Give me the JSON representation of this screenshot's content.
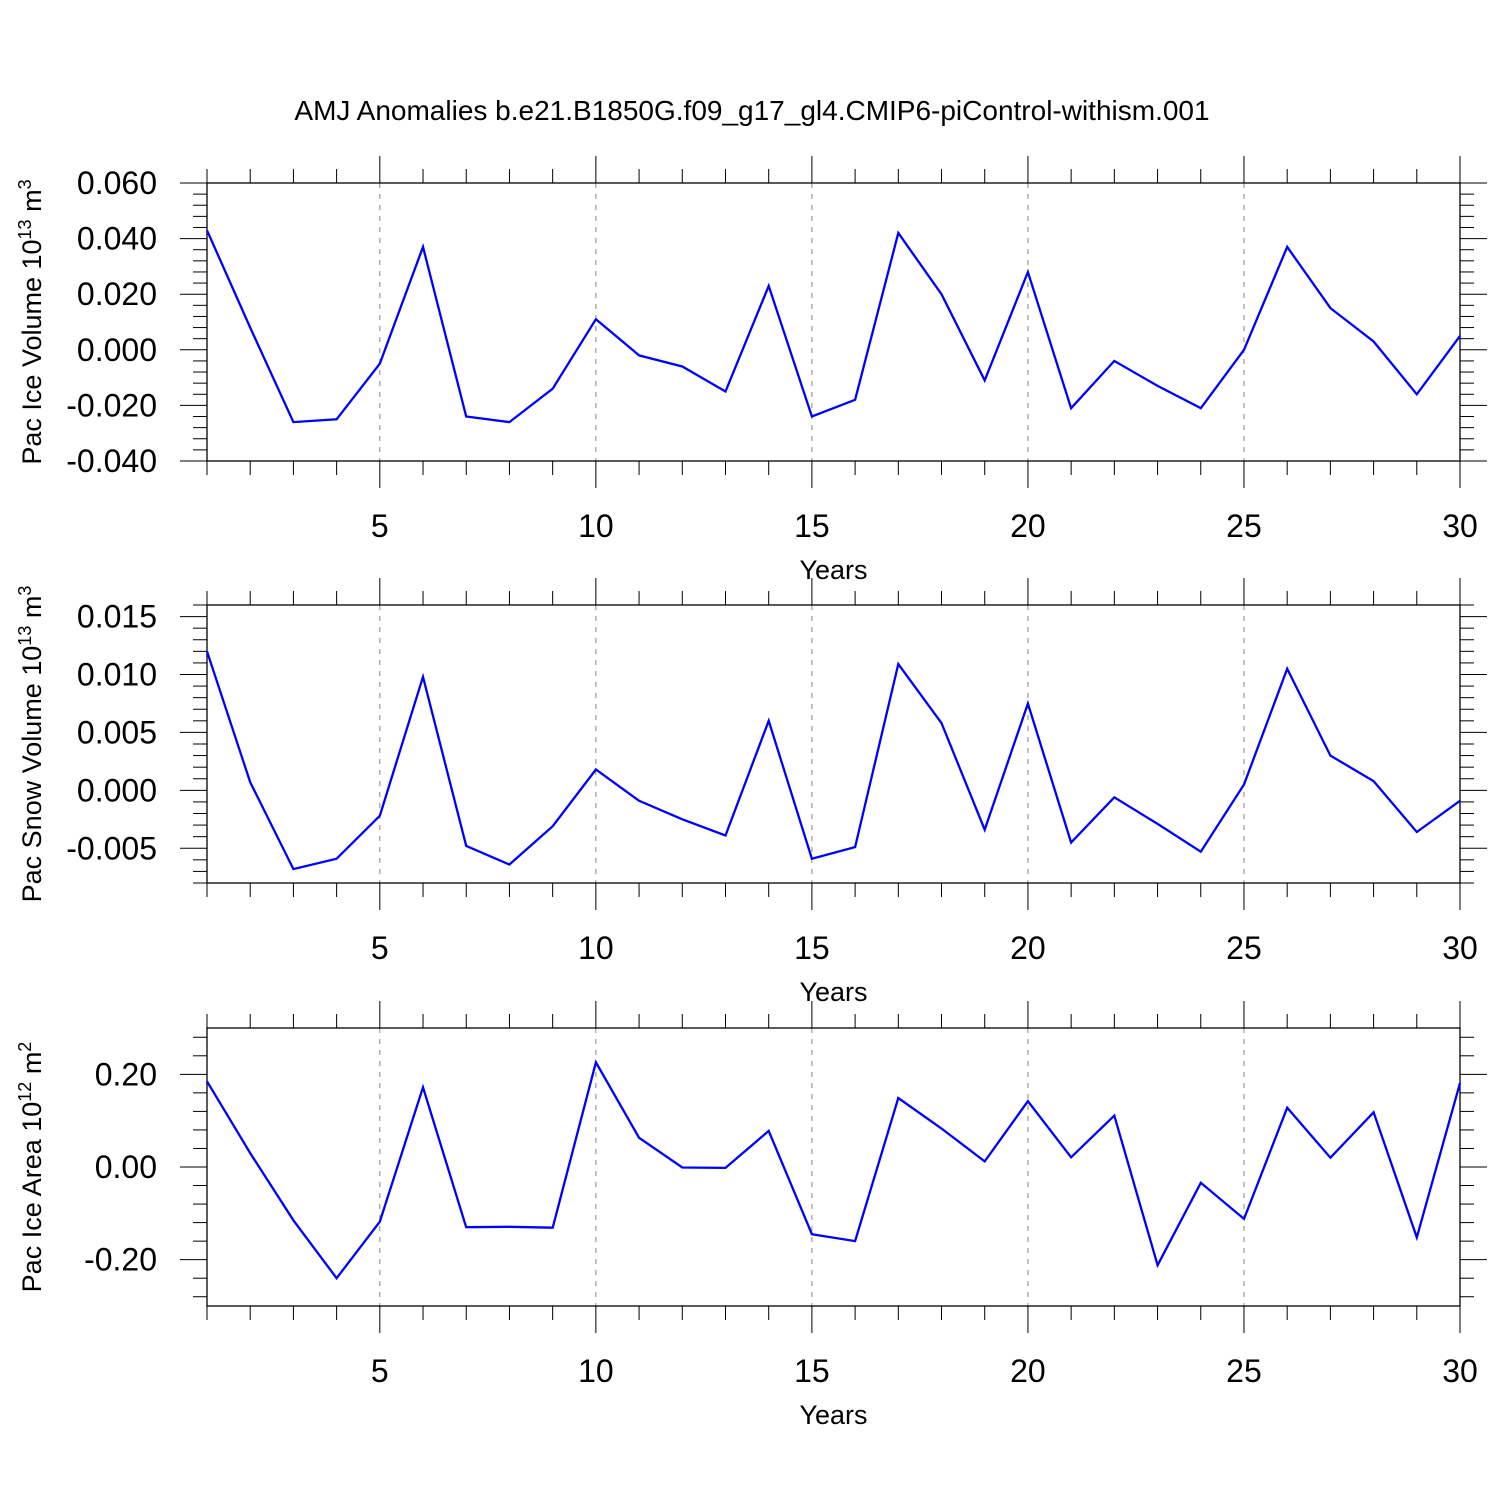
{
  "title": "AMJ Anomalies b.e21.B1850G.f09_g17_gl4.CMIP6-piControl-withism.001",
  "colors": {
    "line": "#0000ff",
    "axes": "#000000",
    "grid": "#888888"
  },
  "chart_data": [
    {
      "type": "line",
      "title": "",
      "xlabel": "Years",
      "ylabel": "Pac Ice Volume 10",
      "ylabel_exp": "13",
      "ylabel_unit": " m",
      "ylabel_unit_exp": "3",
      "xlim": [
        1,
        30
      ],
      "ylim": [
        -0.04,
        0.06
      ],
      "xticks": [
        5,
        10,
        15,
        20,
        25,
        30
      ],
      "xtick_labels": [
        "5",
        "10",
        "15",
        "20",
        "25",
        "30"
      ],
      "yticks": [
        -0.04,
        -0.02,
        0.0,
        0.02,
        0.04,
        0.06
      ],
      "ytick_labels": [
        "-0.040",
        "-0.020",
        "0.000",
        "0.020",
        "0.040",
        "0.060"
      ],
      "grid": "vertical dashed at major x ticks",
      "x": [
        1,
        2,
        3,
        4,
        5,
        6,
        7,
        8,
        9,
        10,
        11,
        12,
        13,
        14,
        15,
        16,
        17,
        18,
        19,
        20,
        21,
        22,
        23,
        24,
        25,
        26,
        27,
        28,
        29,
        30
      ],
      "series": [
        {
          "values": [
            0.043,
            0.008,
            -0.026,
            -0.025,
            -0.005,
            0.037,
            -0.024,
            -0.026,
            -0.014,
            0.011,
            -0.002,
            -0.006,
            -0.015,
            0.023,
            -0.024,
            -0.018,
            0.042,
            0.02,
            -0.011,
            0.028,
            -0.021,
            -0.004,
            -0.013,
            -0.021,
            0.0,
            0.037,
            0.015,
            0.003,
            -0.016,
            0.005
          ]
        }
      ]
    },
    {
      "type": "line",
      "title": "",
      "xlabel": "Years",
      "ylabel": "Pac Snow Volume 10",
      "ylabel_exp": "13",
      "ylabel_unit": " m",
      "ylabel_unit_exp": "3",
      "xlim": [
        1,
        30
      ],
      "ylim": [
        -0.008,
        0.016
      ],
      "xticks": [
        5,
        10,
        15,
        20,
        25,
        30
      ],
      "xtick_labels": [
        "5",
        "10",
        "15",
        "20",
        "25",
        "30"
      ],
      "yticks": [
        -0.005,
        0.0,
        0.005,
        0.01,
        0.015
      ],
      "ytick_labels": [
        "-0.005",
        "0.000",
        "0.005",
        "0.010",
        "0.015"
      ],
      "grid": "vertical dashed at major x ticks",
      "x": [
        1,
        2,
        3,
        4,
        5,
        6,
        7,
        8,
        9,
        10,
        11,
        12,
        13,
        14,
        15,
        16,
        17,
        18,
        19,
        20,
        21,
        22,
        23,
        24,
        25,
        26,
        27,
        28,
        29,
        30
      ],
      "series": [
        {
          "values": [
            0.012,
            0.0007,
            -0.0068,
            -0.0059,
            -0.0022,
            0.0098,
            -0.0048,
            -0.0064,
            -0.0031,
            0.0018,
            -0.0009,
            -0.0025,
            -0.0039,
            0.006,
            -0.0059,
            -0.0049,
            0.0109,
            0.0058,
            -0.0034,
            0.0075,
            -0.0045,
            -0.0006,
            -0.0029,
            -0.0053,
            0.0005,
            0.0105,
            0.003,
            0.0008,
            -0.0036,
            -0.0009
          ]
        }
      ]
    },
    {
      "type": "line",
      "title": "",
      "xlabel": "Years",
      "ylabel": "Pac Ice Area 10",
      "ylabel_exp": "12",
      "ylabel_unit": " m",
      "ylabel_unit_exp": "2",
      "xlim": [
        1,
        30
      ],
      "ylim": [
        -0.3,
        0.3
      ],
      "xticks": [
        5,
        10,
        15,
        20,
        25,
        30
      ],
      "xtick_labels": [
        "5",
        "10",
        "15",
        "20",
        "25",
        "30"
      ],
      "yticks": [
        -0.2,
        0.0,
        0.2
      ],
      "ytick_labels": [
        "-0.20",
        "0.00",
        "0.20"
      ],
      "grid": "vertical dashed at major x ticks",
      "x": [
        1,
        2,
        3,
        4,
        5,
        6,
        7,
        8,
        9,
        10,
        11,
        12,
        13,
        14,
        15,
        16,
        17,
        18,
        19,
        20,
        21,
        22,
        23,
        24,
        25,
        26,
        27,
        28,
        29,
        30
      ],
      "series": [
        {
          "values": [
            0.185,
            0.03,
            -0.115,
            -0.24,
            -0.118,
            0.172,
            -0.13,
            -0.129,
            -0.131,
            0.226,
            0.063,
            -0.001,
            -0.002,
            0.078,
            -0.145,
            -0.16,
            0.149,
            0.083,
            0.012,
            0.142,
            0.021,
            0.111,
            -0.212,
            -0.034,
            -0.112,
            0.128,
            0.02,
            0.118,
            -0.152,
            0.181
          ]
        }
      ]
    }
  ]
}
